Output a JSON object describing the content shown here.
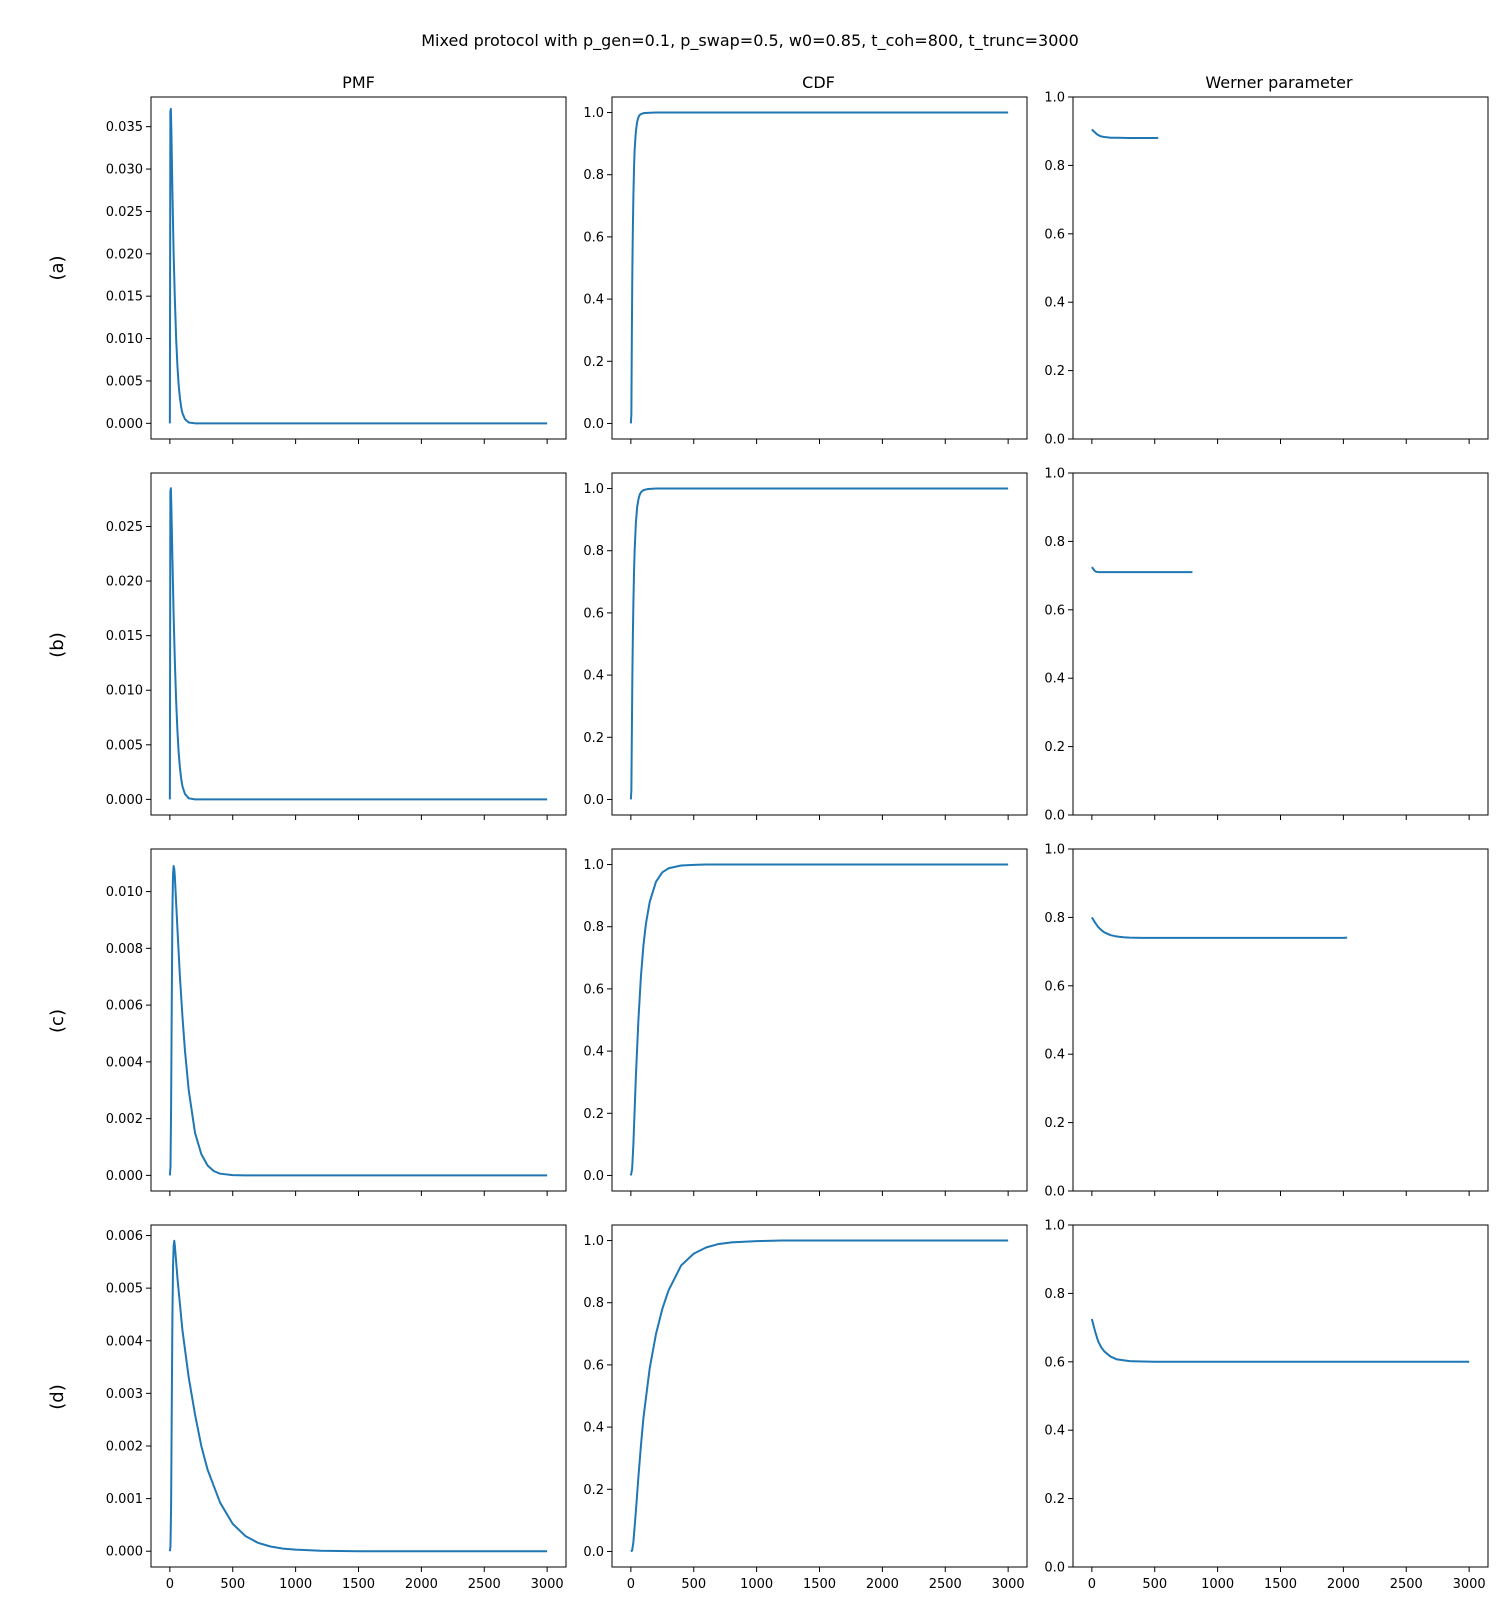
{
  "figure": {
    "title": "Mixed protocol with p_gen=0.1, p_swap=0.5, w0=0.85, t_coh=800, t_trunc=3000",
    "column_titles": [
      "PMF",
      "CDF",
      "Werner parameter"
    ],
    "row_labels": [
      "(a)",
      "(b)",
      "(c)",
      "(d)"
    ],
    "line_color": "#1f77b4"
  },
  "chart_data": [
    {
      "id": "a-pmf",
      "type": "line",
      "row": "(a)",
      "column": "PMF",
      "xlim": [
        -150,
        3150
      ],
      "ylim": [
        -0.00185,
        0.0385
      ],
      "xticks": [
        0,
        500,
        1000,
        1500,
        2000,
        2500,
        3000
      ],
      "show_xticklabels": false,
      "yticks": [
        0.0,
        0.005,
        0.01,
        0.015,
        0.02,
        0.025,
        0.03,
        0.035
      ],
      "ytick_decimals": 3,
      "series": [
        {
          "x": [
            0,
            4,
            8,
            12,
            16,
            20,
            25,
            30,
            40,
            50,
            60,
            70,
            80,
            90,
            100,
            120,
            150,
            200,
            300,
            3000
          ],
          "y": [
            0,
            0.0368,
            0.0371,
            0.0345,
            0.031,
            0.0275,
            0.0237,
            0.02,
            0.0145,
            0.01,
            0.0068,
            0.0045,
            0.003,
            0.0019,
            0.0012,
            0.0005,
            0.0001,
            0,
            0,
            0
          ]
        }
      ]
    },
    {
      "id": "a-cdf",
      "type": "line",
      "row": "(a)",
      "column": "CDF",
      "xlim": [
        -150,
        3150
      ],
      "ylim": [
        -0.05,
        1.05
      ],
      "xticks": [
        0,
        500,
        1000,
        1500,
        2000,
        2500,
        3000
      ],
      "show_xticklabels": false,
      "yticks": [
        0,
        0.2,
        0.4,
        0.6,
        0.8,
        1.0
      ],
      "ytick_decimals": 1,
      "series": [
        {
          "x": [
            0,
            4,
            8,
            12,
            16,
            20,
            25,
            30,
            40,
            50,
            60,
            70,
            80,
            100,
            130,
            200,
            3000
          ],
          "y": [
            0,
            0.03,
            0.3,
            0.5,
            0.63,
            0.73,
            0.82,
            0.88,
            0.94,
            0.97,
            0.985,
            0.992,
            0.995,
            0.998,
            0.999,
            1.0,
            1.0
          ]
        }
      ]
    },
    {
      "id": "a-werner",
      "type": "line",
      "row": "(a)",
      "column": "Werner parameter",
      "xlim": [
        -150,
        3150
      ],
      "ylim": [
        0,
        1
      ],
      "xticks": [
        0,
        500,
        1000,
        1500,
        2000,
        2500,
        3000
      ],
      "show_xticklabels": false,
      "yticks": [
        0,
        0.2,
        0.4,
        0.6,
        0.8,
        1.0
      ],
      "ytick_decimals": 1,
      "series": [
        {
          "x": [
            0,
            20,
            40,
            60,
            80,
            100,
            150,
            200,
            300,
            400,
            500,
            520,
            525
          ],
          "y": [
            0.905,
            0.898,
            0.891,
            0.887,
            0.884,
            0.883,
            0.881,
            0.881,
            0.88,
            0.88,
            0.88,
            0.88,
            0.882
          ]
        }
      ]
    },
    {
      "id": "b-pmf",
      "type": "line",
      "row": "(b)",
      "column": "PMF",
      "xlim": [
        -150,
        3150
      ],
      "ylim": [
        -0.00143,
        0.0299
      ],
      "xticks": [
        0,
        500,
        1000,
        1500,
        2000,
        2500,
        3000
      ],
      "show_xticklabels": false,
      "yticks": [
        0.0,
        0.005,
        0.01,
        0.015,
        0.02,
        0.025
      ],
      "ytick_decimals": 3,
      "series": [
        {
          "x": [
            0,
            4,
            8,
            12,
            16,
            20,
            25,
            30,
            40,
            50,
            60,
            70,
            80,
            90,
            100,
            120,
            150,
            200,
            300,
            3000
          ],
          "y": [
            0,
            0.0282,
            0.0285,
            0.0268,
            0.0245,
            0.0222,
            0.0195,
            0.0168,
            0.0125,
            0.009,
            0.0063,
            0.0043,
            0.0029,
            0.0019,
            0.0012,
            0.0005,
            0.0001,
            0,
            0,
            0
          ]
        }
      ]
    },
    {
      "id": "b-cdf",
      "type": "line",
      "row": "(b)",
      "column": "CDF",
      "xlim": [
        -150,
        3150
      ],
      "ylim": [
        -0.05,
        1.05
      ],
      "xticks": [
        0,
        500,
        1000,
        1500,
        2000,
        2500,
        3000
      ],
      "show_xticklabels": false,
      "yticks": [
        0,
        0.2,
        0.4,
        0.6,
        0.8,
        1.0
      ],
      "ytick_decimals": 1,
      "series": [
        {
          "x": [
            0,
            4,
            8,
            12,
            16,
            20,
            25,
            30,
            40,
            50,
            60,
            70,
            80,
            100,
            130,
            200,
            3000
          ],
          "y": [
            0,
            0.03,
            0.22,
            0.4,
            0.53,
            0.63,
            0.73,
            0.8,
            0.89,
            0.94,
            0.965,
            0.98,
            0.988,
            0.995,
            0.998,
            1.0,
            1.0
          ]
        }
      ]
    },
    {
      "id": "b-werner",
      "type": "line",
      "row": "(b)",
      "column": "Werner parameter",
      "xlim": [
        -150,
        3150
      ],
      "ylim": [
        0,
        1
      ],
      "xticks": [
        0,
        500,
        1000,
        1500,
        2000,
        2500,
        3000
      ],
      "show_xticklabels": false,
      "yticks": [
        0,
        0.2,
        0.4,
        0.6,
        0.8,
        1.0
      ],
      "ytick_decimals": 1,
      "series": [
        {
          "x": [
            0,
            10,
            20,
            30,
            40,
            60,
            100,
            200,
            400,
            600,
            800
          ],
          "y": [
            0.725,
            0.72,
            0.715,
            0.712,
            0.711,
            0.71,
            0.71,
            0.71,
            0.71,
            0.71,
            0.71
          ]
        }
      ]
    },
    {
      "id": "c-pmf",
      "type": "line",
      "row": "(c)",
      "column": "PMF",
      "xlim": [
        -150,
        3150
      ],
      "ylim": [
        -0.00055,
        0.0115
      ],
      "xticks": [
        0,
        500,
        1000,
        1500,
        2000,
        2500,
        3000
      ],
      "show_xticklabels": false,
      "yticks": [
        0.0,
        0.002,
        0.004,
        0.006,
        0.008,
        0.01
      ],
      "ytick_decimals": 3,
      "series": [
        {
          "x": [
            0,
            5,
            10,
            15,
            20,
            25,
            30,
            35,
            40,
            50,
            60,
            80,
            100,
            120,
            150,
            200,
            250,
            300,
            350,
            400,
            500,
            600,
            3000
          ],
          "y": [
            0,
            0.0003,
            0.0025,
            0.006,
            0.0092,
            0.0106,
            0.0109,
            0.0108,
            0.0105,
            0.0096,
            0.0087,
            0.007,
            0.0056,
            0.0044,
            0.003,
            0.0015,
            0.00075,
            0.00035,
            0.00015,
            6e-05,
            1e-05,
            0,
            0
          ]
        }
      ]
    },
    {
      "id": "c-cdf",
      "type": "line",
      "row": "(c)",
      "column": "CDF",
      "xlim": [
        -150,
        3150
      ],
      "ylim": [
        -0.05,
        1.05
      ],
      "xticks": [
        0,
        500,
        1000,
        1500,
        2000,
        2500,
        3000
      ],
      "show_xticklabels": false,
      "yticks": [
        0,
        0.2,
        0.4,
        0.6,
        0.8,
        1.0
      ],
      "ytick_decimals": 1,
      "series": [
        {
          "x": [
            0,
            10,
            20,
            30,
            40,
            50,
            60,
            80,
            100,
            120,
            150,
            200,
            250,
            300,
            400,
            500,
            600,
            3000
          ],
          "y": [
            0,
            0.02,
            0.1,
            0.21,
            0.32,
            0.41,
            0.5,
            0.64,
            0.74,
            0.81,
            0.88,
            0.945,
            0.975,
            0.988,
            0.997,
            0.999,
            1.0,
            1.0
          ]
        }
      ]
    },
    {
      "id": "c-werner",
      "type": "line",
      "row": "(c)",
      "column": "Werner parameter",
      "xlim": [
        -150,
        3150
      ],
      "ylim": [
        0,
        1
      ],
      "xticks": [
        0,
        500,
        1000,
        1500,
        2000,
        2500,
        3000
      ],
      "show_xticklabels": false,
      "yticks": [
        0,
        0.2,
        0.4,
        0.6,
        0.8,
        1.0
      ],
      "ytick_decimals": 1,
      "series": [
        {
          "x": [
            0,
            25,
            50,
            75,
            100,
            150,
            200,
            250,
            300,
            400,
            500,
            700,
            1000,
            1500,
            2000,
            2030
          ],
          "y": [
            0.8,
            0.785,
            0.772,
            0.763,
            0.756,
            0.748,
            0.744,
            0.742,
            0.741,
            0.74,
            0.74,
            0.74,
            0.74,
            0.74,
            0.74,
            0.741
          ]
        }
      ]
    },
    {
      "id": "d-pmf",
      "type": "line",
      "row": "(d)",
      "column": "PMF",
      "xlim": [
        -150,
        3150
      ],
      "ylim": [
        -0.0003,
        0.0062
      ],
      "xticks": [
        0,
        500,
        1000,
        1500,
        2000,
        2500,
        3000
      ],
      "show_xticklabels": true,
      "yticks": [
        0.0,
        0.001,
        0.002,
        0.003,
        0.004,
        0.005,
        0.006
      ],
      "ytick_decimals": 3,
      "series": [
        {
          "x": [
            0,
            5,
            10,
            15,
            20,
            25,
            30,
            35,
            40,
            50,
            60,
            80,
            100,
            150,
            200,
            250,
            300,
            400,
            500,
            600,
            700,
            800,
            900,
            1000,
            1200,
            1500,
            3000
          ],
          "y": [
            0,
            0.0001,
            0.0009,
            0.0027,
            0.0044,
            0.0054,
            0.0058,
            0.0059,
            0.0058,
            0.0055,
            0.0052,
            0.0047,
            0.0042,
            0.0033,
            0.0026,
            0.002,
            0.00155,
            0.00092,
            0.00052,
            0.00029,
            0.00016,
            9e-05,
            5e-05,
            3e-05,
            1e-05,
            0,
            0
          ]
        }
      ]
    },
    {
      "id": "d-cdf",
      "type": "line",
      "row": "(d)",
      "column": "CDF",
      "xlim": [
        -150,
        3150
      ],
      "ylim": [
        -0.05,
        1.05
      ],
      "xticks": [
        0,
        500,
        1000,
        1500,
        2000,
        2500,
        3000
      ],
      "show_xticklabels": true,
      "yticks": [
        0,
        0.2,
        0.4,
        0.6,
        0.8,
        1.0
      ],
      "ytick_decimals": 1,
      "series": [
        {
          "x": [
            0,
            10,
            20,
            30,
            40,
            60,
            80,
            100,
            150,
            200,
            250,
            300,
            400,
            500,
            600,
            700,
            800,
            1000,
            1200,
            3000
          ],
          "y": [
            0,
            0.003,
            0.03,
            0.08,
            0.13,
            0.24,
            0.34,
            0.43,
            0.59,
            0.7,
            0.78,
            0.84,
            0.92,
            0.958,
            0.978,
            0.989,
            0.994,
            0.998,
            1.0,
            1.0
          ]
        }
      ]
    },
    {
      "id": "d-werner",
      "type": "line",
      "row": "(d)",
      "column": "Werner parameter",
      "xlim": [
        -150,
        3150
      ],
      "ylim": [
        0,
        1
      ],
      "xticks": [
        0,
        500,
        1000,
        1500,
        2000,
        2500,
        3000
      ],
      "show_xticklabels": true,
      "yticks": [
        0,
        0.2,
        0.4,
        0.6,
        0.8,
        1.0
      ],
      "ytick_decimals": 1,
      "series": [
        {
          "x": [
            0,
            25,
            50,
            75,
            100,
            150,
            200,
            300,
            400,
            500,
            700,
            1000,
            1500,
            2000,
            3000
          ],
          "y": [
            0.725,
            0.69,
            0.66,
            0.642,
            0.63,
            0.615,
            0.607,
            0.602,
            0.601,
            0.6,
            0.6,
            0.6,
            0.6,
            0.6,
            0.6
          ]
        }
      ]
    }
  ]
}
